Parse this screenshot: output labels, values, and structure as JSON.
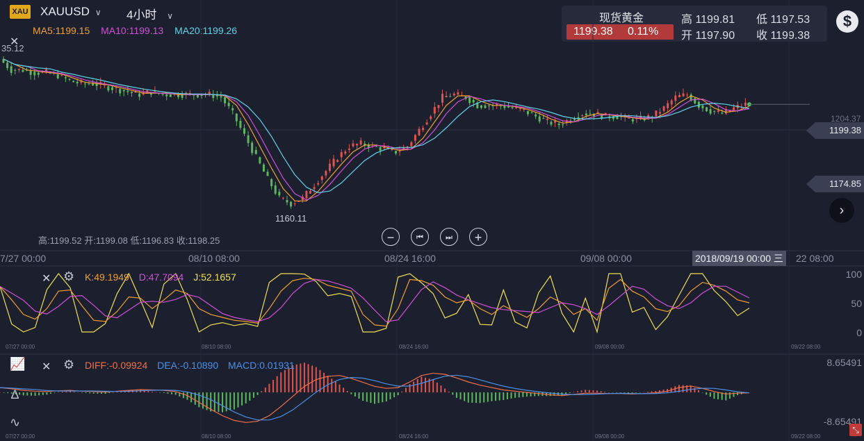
{
  "header": {
    "logo": "XAU",
    "symbol": "XAUUSD",
    "period": "4小时",
    "ma5": "MA5:1199.15",
    "ma10": "MA10:1199.13",
    "ma20": "MA20:1199.26",
    "partial_label": "35.12"
  },
  "quote": {
    "name": "现货黄金",
    "price": "1199.38",
    "change": "0.11%",
    "high": "高 1199.81",
    "low": "低 1197.53",
    "open": "开 1197.90",
    "close": "收 1199.38"
  },
  "price_tags": {
    "current": "1199.38",
    "faint_level": "1204.37",
    "lower": "1174.85"
  },
  "ohlc_readout": "高:1199.52 开:1199.08 低:1196.83 收:1198.25",
  "low_annotation": "1160.11",
  "x_dates": [
    "7/27 00:00",
    "08/10 08:00",
    "08/24 16:00",
    "09/08 00:00",
    "22 08:00"
  ],
  "crosshair_date": "2018/09/19 00:00 三",
  "kdj": {
    "k": "K:49.1949",
    "d": "D:47.7094",
    "j": "J:52.1657",
    "axis": [
      "100",
      "50",
      "0"
    ]
  },
  "macd": {
    "diff": "DIFF:-0.09924",
    "dea": "DEA:-0.10890",
    "macd": "MACD:0.01931",
    "axis_top": "8.65491",
    "axis_bottom": "-8.65491"
  },
  "small_dates": [
    "07/27 00:00",
    "08/10 08:00",
    "08/24 16:00",
    "09/08 00:00",
    "09/22 08:00"
  ],
  "colors": {
    "up": "#e0544e",
    "down": "#5cb85c",
    "ma5": "#f0a030",
    "ma10": "#d050d8",
    "ma20": "#5fd3e8",
    "k": "#f0a030",
    "d": "#d050d8",
    "j": "#f0e050",
    "diff": "#f07048",
    "dea": "#4a90e8"
  },
  "chart_data": [
    {
      "type": "candlestick",
      "title": "XAUUSD",
      "x_ticks": [
        "7/27 00:00",
        "08/10 08:00",
        "08/24 16:00",
        "09/08 00:00",
        "22 08:00"
      ],
      "ylim": [
        1160,
        1210
      ],
      "annotations": [
        "1160.11",
        "1204.37",
        "1199.38",
        "1174.85"
      ],
      "series": [
        {
          "name": "MA5",
          "last": 1199.15
        },
        {
          "name": "MA10",
          "last": 1199.13
        },
        {
          "name": "MA20",
          "last": 1199.26
        }
      ],
      "close_path": [
        1216,
        1212,
        1212,
        1211,
        1211,
        1210,
        1208,
        1207,
        1207,
        1206,
        1205,
        1204,
        1203,
        1204,
        1203,
        1203,
        1203,
        1203,
        1203,
        1202,
        1196,
        1188,
        1180,
        1172,
        1165,
        1163,
        1165,
        1170,
        1175,
        1180,
        1184,
        1185,
        1184,
        1183,
        1182,
        1184,
        1190,
        1196,
        1202,
        1203,
        1202,
        1199,
        1199,
        1199,
        1198,
        1197,
        1195,
        1193,
        1192,
        1194,
        1196,
        1196,
        1195,
        1195,
        1194,
        1194,
        1195,
        1198,
        1202,
        1203,
        1199,
        1197,
        1196,
        1198,
        1199.38
      ]
    },
    {
      "type": "line",
      "title": "KDJ",
      "ylim": [
        0,
        100
      ],
      "series": [
        {
          "name": "K",
          "last": 49.1949
        },
        {
          "name": "D",
          "last": 47.7094
        },
        {
          "name": "J",
          "last": 52.1657
        }
      ],
      "k_path": [
        78,
        55,
        30,
        22,
        40,
        70,
        72,
        45,
        20,
        18,
        35,
        60,
        58,
        40,
        55,
        72,
        66,
        40,
        30,
        25,
        20,
        18,
        15,
        40,
        70,
        88,
        92,
        90,
        80,
        75,
        70,
        30,
        12,
        10,
        40,
        90,
        88,
        80,
        60,
        50,
        55,
        40,
        30,
        45,
        35,
        25,
        40,
        60,
        50,
        30,
        40,
        20,
        75,
        90,
        70,
        60,
        40,
        35,
        45,
        70,
        85,
        80,
        70,
        55,
        50
      ]
    },
    {
      "type": "bar",
      "title": "MACD",
      "ylim": [
        -8.65491,
        8.65491
      ],
      "series": [
        {
          "name": "DIFF",
          "last": -0.09924
        },
        {
          "name": "DEA",
          "last": -0.1089
        },
        {
          "name": "MACD",
          "last": 0.01931
        }
      ],
      "diff_path": [
        1.2,
        0.9,
        0.5,
        0.3,
        0.2,
        0.4,
        0.5,
        0.3,
        0.2,
        0.1,
        0.3,
        0.5,
        0.7,
        0.6,
        0.5,
        0.2,
        -0.8,
        -2.5,
        -4.2,
        -5.8,
        -7.0,
        -7.5,
        -7.2,
        -5.8,
        -3.5,
        -1.0,
        1.5,
        3.2,
        4.0,
        4.2,
        3.5,
        2.5,
        1.5,
        1.0,
        1.2,
        2.6,
        4.2,
        4.8,
        4.5,
        3.6,
        2.6,
        1.8,
        1.2,
        0.6,
        0.3,
        0.0,
        -0.3,
        -0.6,
        -0.8,
        -0.5,
        -0.2,
        -0.2,
        -0.3,
        -0.3,
        -0.4,
        -0.3,
        -0.1,
        0.3,
        1.2,
        1.6,
        1.0,
        0.2,
        -0.4,
        -0.2,
        -0.1
      ]
    }
  ]
}
